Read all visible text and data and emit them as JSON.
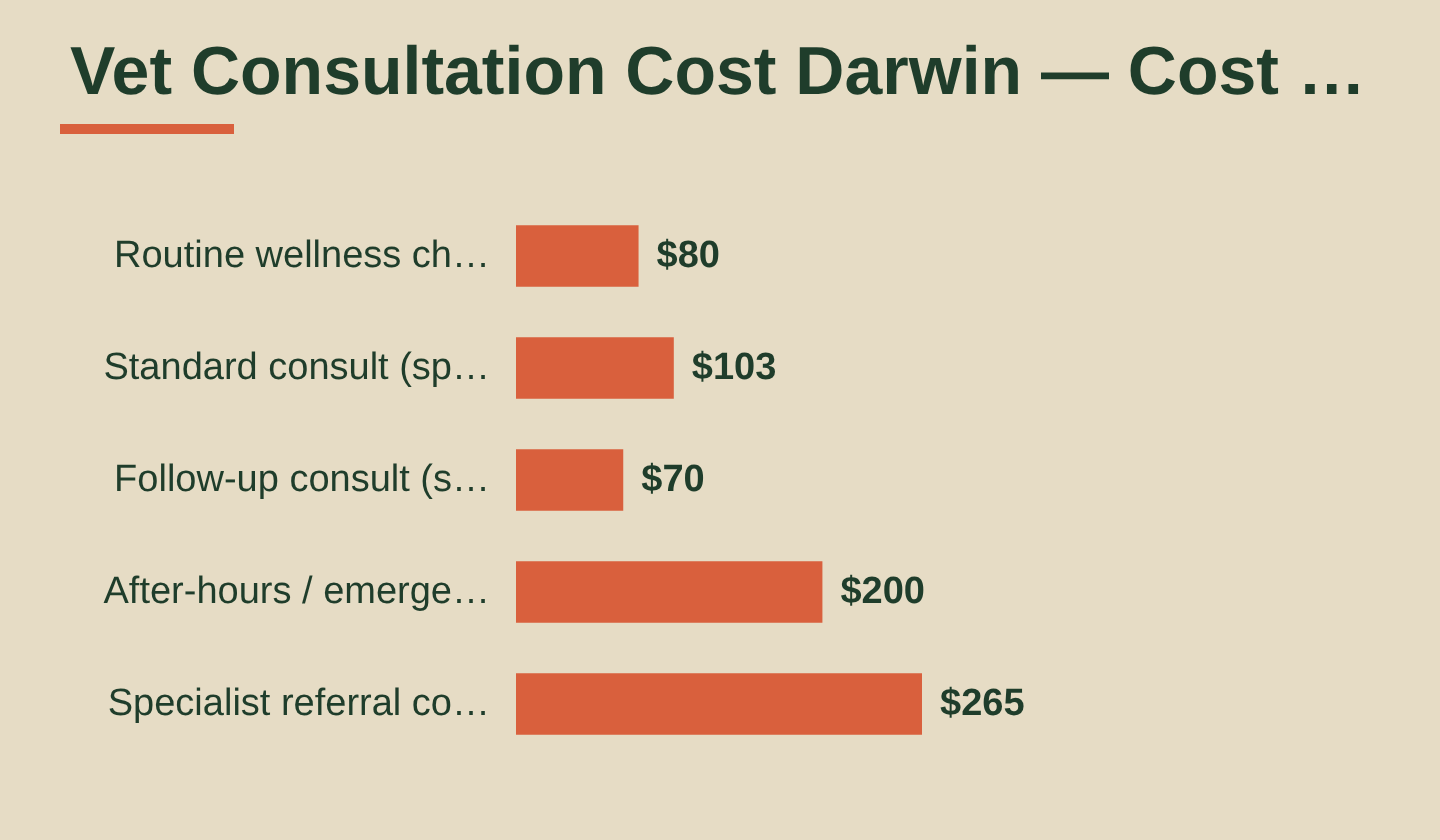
{
  "chart_data": {
    "type": "bar",
    "orientation": "horizontal",
    "title": "Vet Consultation Cost Darwin — Cost …",
    "categories": [
      "Routine wellness ch…",
      "Standard consult (sp…",
      "Follow-up consult (s…",
      "After-hours / emerge…",
      "Specialist referral co…"
    ],
    "values": [
      80,
      103,
      70,
      200,
      265
    ],
    "color": "#d9603d",
    "value_labels": [
      "$80",
      "$103",
      "$70",
      "$200",
      "$265"
    ]
  }
}
